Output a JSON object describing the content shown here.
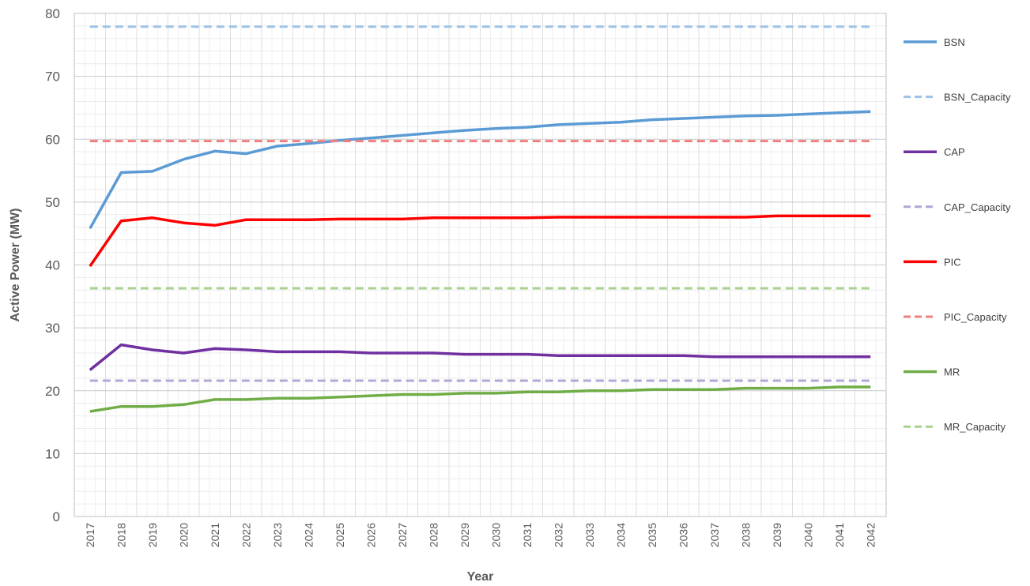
{
  "chart_data": {
    "type": "line",
    "xlabel": "Year",
    "ylabel": "Active Power (MW)",
    "ylim": [
      0,
      80
    ],
    "y_ticks": [
      0,
      10,
      20,
      30,
      40,
      50,
      60,
      70,
      80
    ],
    "x": [
      "2017",
      "2018",
      "2019",
      "2020",
      "2021",
      "2022",
      "2023",
      "2024",
      "2025",
      "2026",
      "2027",
      "2028",
      "2029",
      "2030",
      "2031",
      "2032",
      "2033",
      "2034",
      "2035",
      "2036",
      "2037",
      "2038",
      "2039",
      "2040",
      "2041",
      "2042"
    ],
    "grid": "on",
    "legend_position": "right",
    "series": [
      {
        "name": "BSN",
        "color": "#5b9bd5",
        "style": "solid",
        "values": [
          45.8,
          54.7,
          54.9,
          56.8,
          58.1,
          57.7,
          58.9,
          59.3,
          59.8,
          60.2,
          60.6,
          61.0,
          61.4,
          61.7,
          61.9,
          62.3,
          62.5,
          62.7,
          63.1,
          63.3,
          63.5,
          63.7,
          63.8,
          64.0,
          64.2,
          64.4
        ]
      },
      {
        "name": "BSN_Capacity",
        "color": "#9dc3e6",
        "style": "dashed",
        "values": [
          77.9,
          77.9,
          77.9,
          77.9,
          77.9,
          77.9,
          77.9,
          77.9,
          77.9,
          77.9,
          77.9,
          77.9,
          77.9,
          77.9,
          77.9,
          77.9,
          77.9,
          77.9,
          77.9,
          77.9,
          77.9,
          77.9,
          77.9,
          77.9,
          77.9,
          77.9
        ]
      },
      {
        "name": "CAP",
        "color": "#7030a0",
        "style": "solid",
        "values": [
          23.3,
          27.3,
          26.5,
          26.0,
          26.7,
          26.5,
          26.2,
          26.2,
          26.2,
          26.0,
          26.0,
          26.0,
          25.8,
          25.8,
          25.8,
          25.6,
          25.6,
          25.6,
          25.6,
          25.6,
          25.4,
          25.4,
          25.4,
          25.4,
          25.4,
          25.4
        ]
      },
      {
        "name": "CAP_Capacity",
        "color": "#b4a7d6",
        "style": "dashed",
        "values": [
          21.6,
          21.6,
          21.6,
          21.6,
          21.6,
          21.6,
          21.6,
          21.6,
          21.6,
          21.6,
          21.6,
          21.6,
          21.6,
          21.6,
          21.6,
          21.6,
          21.6,
          21.6,
          21.6,
          21.6,
          21.6,
          21.6,
          21.6,
          21.6,
          21.6,
          21.6
        ]
      },
      {
        "name": "PIC",
        "color": "#ff0000",
        "style": "solid",
        "values": [
          39.8,
          47.0,
          47.5,
          46.7,
          46.3,
          47.2,
          47.2,
          47.2,
          47.3,
          47.3,
          47.3,
          47.5,
          47.5,
          47.5,
          47.5,
          47.6,
          47.6,
          47.6,
          47.6,
          47.6,
          47.6,
          47.6,
          47.8,
          47.8,
          47.8,
          47.8
        ]
      },
      {
        "name": "PIC_Capacity",
        "color": "#f08080",
        "style": "dashed",
        "values": [
          59.7,
          59.7,
          59.7,
          59.7,
          59.7,
          59.7,
          59.7,
          59.7,
          59.7,
          59.7,
          59.7,
          59.7,
          59.7,
          59.7,
          59.7,
          59.7,
          59.7,
          59.7,
          59.7,
          59.7,
          59.7,
          59.7,
          59.7,
          59.7,
          59.7,
          59.7
        ]
      },
      {
        "name": "MR",
        "color": "#70ad47",
        "style": "solid",
        "values": [
          16.7,
          17.5,
          17.5,
          17.8,
          18.6,
          18.6,
          18.8,
          18.8,
          19.0,
          19.2,
          19.4,
          19.4,
          19.6,
          19.6,
          19.8,
          19.8,
          20.0,
          20.0,
          20.2,
          20.2,
          20.2,
          20.4,
          20.4,
          20.4,
          20.6,
          20.6
        ]
      },
      {
        "name": "MR_Capacity",
        "color": "#a9d18e",
        "style": "dashed",
        "values": [
          36.3,
          36.3,
          36.3,
          36.3,
          36.3,
          36.3,
          36.3,
          36.3,
          36.3,
          36.3,
          36.3,
          36.3,
          36.3,
          36.3,
          36.3,
          36.3,
          36.3,
          36.3,
          36.3,
          36.3,
          36.3,
          36.3,
          36.3,
          36.3,
          36.3,
          36.3
        ]
      }
    ]
  }
}
